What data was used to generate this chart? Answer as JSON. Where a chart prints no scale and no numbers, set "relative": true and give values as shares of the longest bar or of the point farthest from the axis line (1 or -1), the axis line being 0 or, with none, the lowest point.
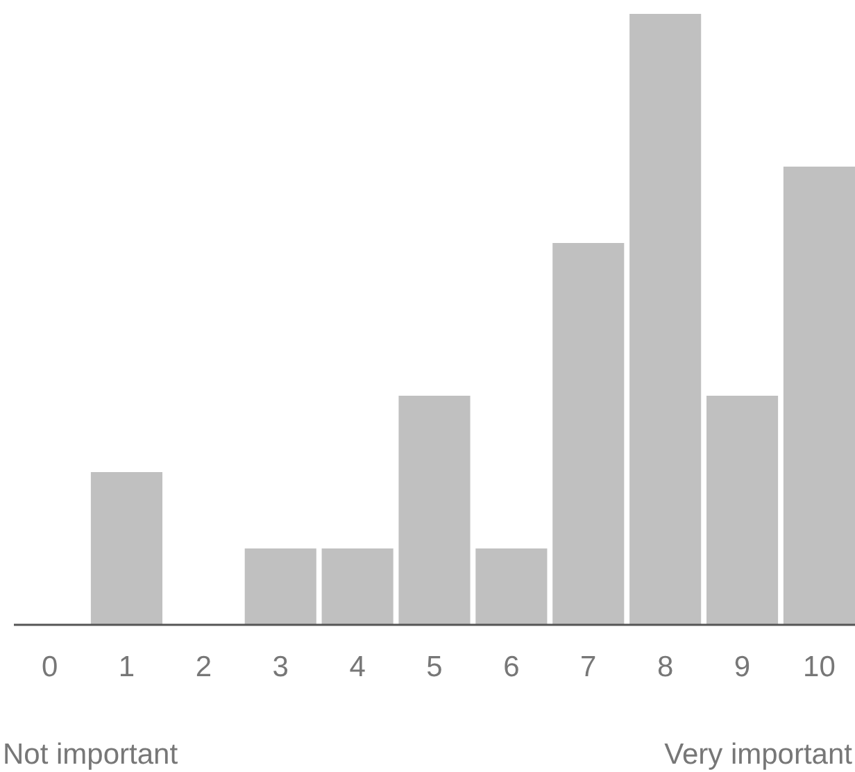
{
  "chart_data": {
    "type": "bar",
    "relative": true,
    "color": "#c0c0c0",
    "categories": [
      "0",
      "1",
      "2",
      "3",
      "4",
      "5",
      "6",
      "7",
      "8",
      "9",
      "10"
    ],
    "values": [
      0,
      0.25,
      0,
      0.125,
      0.125,
      0.375,
      0.125,
      0.625,
      1,
      0.375,
      0.75
    ],
    "annotations": [
      "Not important",
      "Very important"
    ]
  }
}
